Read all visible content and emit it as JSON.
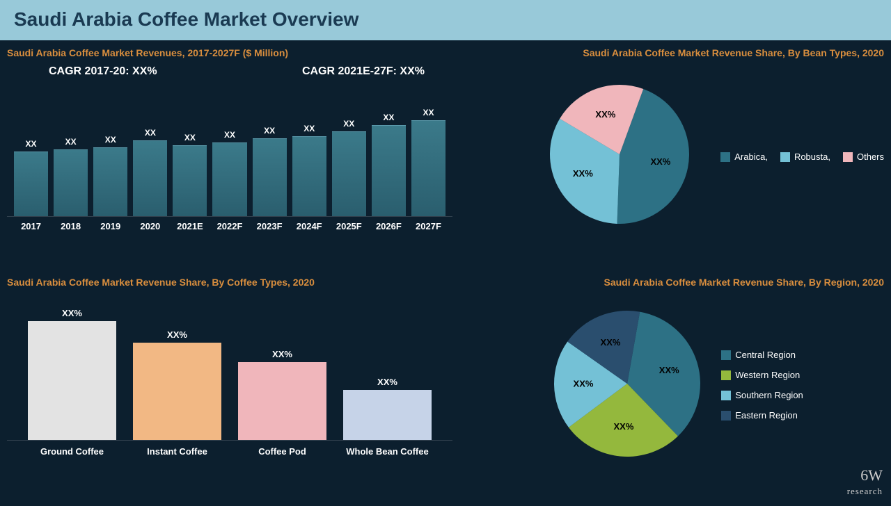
{
  "header": {
    "title": "Saudi Arabia Coffee Market Overview"
  },
  "colors": {
    "bg": "#0c1f2e",
    "header_bg": "#98c9d9",
    "header_text": "#1a3a52",
    "accent": "#d98e3e",
    "text": "#ffffff"
  },
  "revenue_chart": {
    "type": "bar",
    "title": "Saudi Arabia Coffee Market Revenues, 2017-2027F ($ Million)",
    "cagr_left": "CAGR 2017-20: XX%",
    "cagr_right": "CAGR 2021E-27F: XX%",
    "categories": [
      "2017",
      "2018",
      "2019",
      "2020",
      "2021E",
      "2022F",
      "2023F",
      "2024F",
      "2025F",
      "2026F",
      "2027F"
    ],
    "heights_pct": [
      58,
      60,
      62,
      68,
      64,
      66,
      70,
      72,
      76,
      82,
      86
    ],
    "value_labels": [
      "XX",
      "XX",
      "XX",
      "XX",
      "XX",
      "XX",
      "XX",
      "XX",
      "XX",
      "XX",
      "XX"
    ],
    "bar_color": "#2d6b7c",
    "label_fontsize": 13
  },
  "bean_pie": {
    "type": "pie",
    "title": "Saudi Arabia Coffee Market Revenue Share, By Bean Types, 2020",
    "slices": [
      {
        "label": "Arabica,",
        "value": 45,
        "color": "#2d7185",
        "display": "XX%"
      },
      {
        "label": "Robusta,",
        "value": 33,
        "color": "#74c1d6",
        "display": "XX%"
      },
      {
        "label": "Others",
        "value": 22,
        "color": "#f0b6bb",
        "display": "XX%"
      }
    ]
  },
  "coffee_types_chart": {
    "type": "bar",
    "title": "Saudi Arabia Coffee Market Revenue Share, By Coffee Types, 2020",
    "bars": [
      {
        "label": "Ground Coffee",
        "height_pct": 95,
        "color": "#e3e3e3",
        "display": "XX%"
      },
      {
        "label": "Instant Coffee",
        "height_pct": 78,
        "color": "#f2b884",
        "display": "XX%"
      },
      {
        "label": "Coffee Pod",
        "height_pct": 62,
        "color": "#f0b6bb",
        "display": "XX%"
      },
      {
        "label": "Whole Bean Coffee",
        "height_pct": 40,
        "color": "#c6d3e8",
        "display": "XX%"
      }
    ]
  },
  "region_pie": {
    "type": "pie",
    "title": "Saudi Arabia Coffee Market Revenue Share, By Region, 2020",
    "slices": [
      {
        "label": "Central Region",
        "value": 35,
        "color": "#2d7185",
        "display": "XX%"
      },
      {
        "label": "Western Region",
        "value": 27,
        "color": "#94b83d",
        "display": "XX%"
      },
      {
        "label": "Southern Region",
        "value": 20,
        "color": "#74c1d6",
        "display": "XX%"
      },
      {
        "label": "Eastern Region",
        "value": 18,
        "color": "#2a4e6e",
        "display": "XX%"
      }
    ]
  },
  "logo": {
    "main": "6W",
    "sub": "research"
  }
}
